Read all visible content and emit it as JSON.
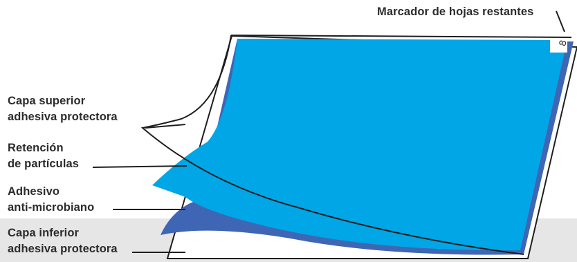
{
  "labels": {
    "marker": "Marcador de hojas restantes",
    "top_layer": [
      "Capa superior",
      "adhesiva protectora"
    ],
    "retention": [
      "Retención",
      "de partículas"
    ],
    "adhesive": [
      "Adhesivo",
      "anti-microbiano"
    ],
    "bottom_layer": [
      "Capa inferior",
      "adhesiva protectora"
    ]
  },
  "marker_glyph": "8",
  "colors": {
    "sheet_light": "#00a6e6",
    "sheet_dark": "#3f66b4",
    "outline": "#1e1e1e",
    "band": "#e6e6e7",
    "text": "#2b2b2b"
  }
}
